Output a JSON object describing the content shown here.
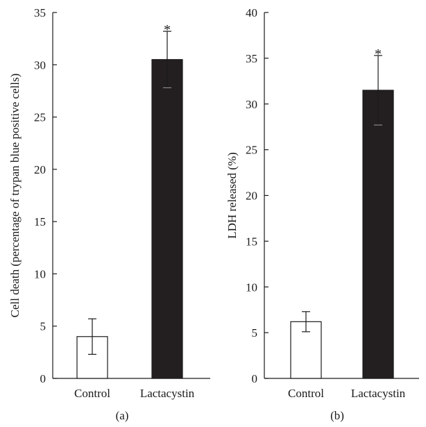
{
  "chart_data": [
    {
      "type": "bar",
      "panel_label": "(a)",
      "ylabel": "Cell death (percentage of trypan blue positive cells)",
      "xlabel": "",
      "ylim": [
        0,
        35
      ],
      "yticks": [
        0,
        5,
        10,
        15,
        20,
        25,
        30,
        35
      ],
      "categories": [
        "Control",
        "Lactacystin"
      ],
      "values": [
        4.0,
        30.5
      ],
      "errors": [
        1.7,
        2.7
      ],
      "significance": [
        "",
        "*"
      ],
      "bar_colors": [
        "#ffffff",
        "#231f20"
      ]
    },
    {
      "type": "bar",
      "panel_label": "(b)",
      "ylabel": "LDH released (%)",
      "xlabel": "",
      "ylim": [
        0,
        40
      ],
      "yticks": [
        0,
        5,
        10,
        15,
        20,
        25,
        30,
        35,
        40
      ],
      "categories": [
        "Control",
        "Lactacystin"
      ],
      "values": [
        6.2,
        31.5
      ],
      "errors": [
        1.1,
        3.8
      ],
      "significance": [
        "",
        "*"
      ],
      "bar_colors": [
        "#ffffff",
        "#231f20"
      ]
    }
  ],
  "colors": {
    "axis": "#1a1a1a",
    "control_bar": "#ffffff",
    "treated_bar": "#231f20"
  }
}
